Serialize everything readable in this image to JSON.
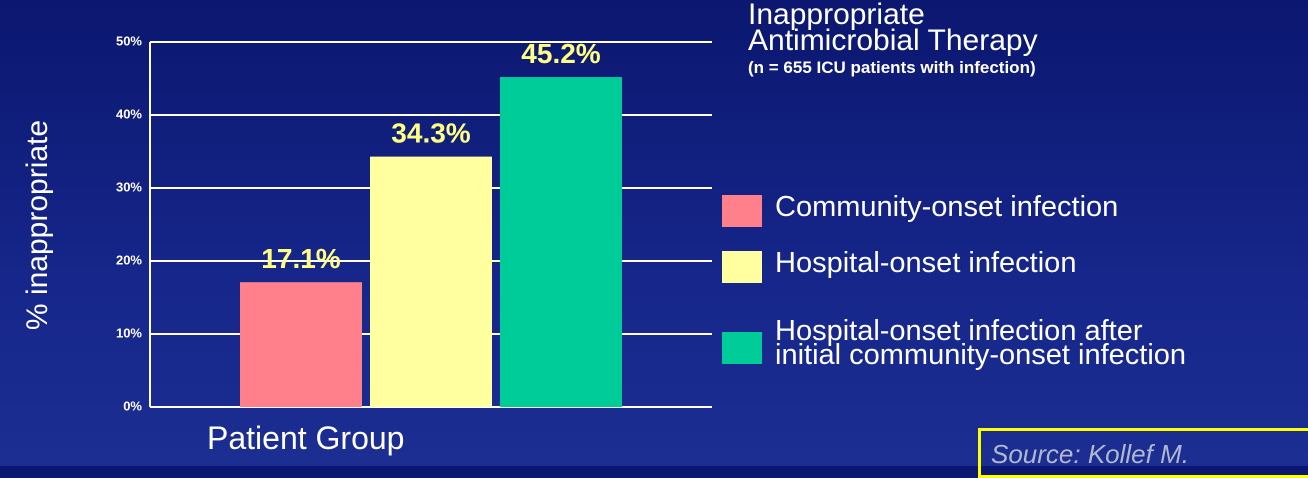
{
  "chart_data": {
    "type": "bar",
    "title": "Inappropriate\nAntimicrobial Therapy",
    "subtitle": "(n = 655 ICU patients with infection)",
    "y_label": "% inappropriate",
    "x_label": "Patient Group",
    "categories": [
      null
    ],
    "series": [
      {
        "name": "Community-onset infection",
        "color": "#ff7f8a",
        "values": [
          17.1
        ],
        "value_labels": [
          "17.1%"
        ]
      },
      {
        "name": "Hospital-onset infection",
        "color": "#ffffa0",
        "values": [
          34.3
        ],
        "value_labels": [
          "34.3%"
        ]
      },
      {
        "name": "Hospital-onset infection after\ninitial community-onset infection",
        "color": "#00cc99",
        "values": [
          45.2
        ],
        "value_labels": [
          "45.2%"
        ]
      }
    ],
    "ylim": [
      0,
      50
    ],
    "yticks": [
      {
        "value": 0,
        "label": "0%"
      },
      {
        "value": 10,
        "label": "10%"
      },
      {
        "value": 20,
        "label": "20%"
      },
      {
        "value": 30,
        "label": "30%"
      },
      {
        "value": 40,
        "label": "40%"
      },
      {
        "value": 50,
        "label": "50%"
      }
    ],
    "grid": true,
    "source": "Source: Kollef M."
  }
}
